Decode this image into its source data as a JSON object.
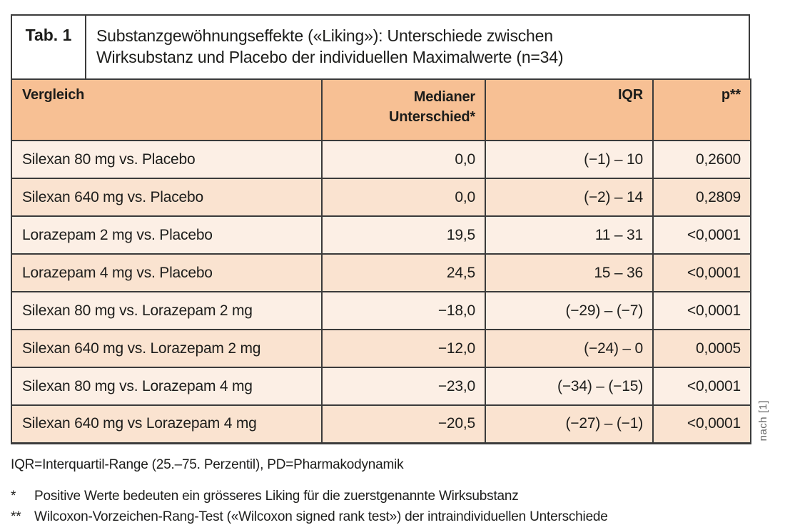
{
  "colors": {
    "header_bg": "#f7c094",
    "row_light": "#fcefe5",
    "row_dark": "#fae3d0",
    "border": "#3b3b3b",
    "text": "#1d1d1b",
    "source_text": "#666666"
  },
  "table": {
    "tag": "Tab. 1",
    "title_lines": [
      "Substanzgewöhnungseffekte («Liking»): Unterschiede zwischen",
      "Wirksubstanz und Placebo der individuellen Maximalwerte (n=34)"
    ],
    "header": {
      "col1": "Vergleich",
      "col2_lines": [
        "Medianer",
        "Unterschied*"
      ],
      "col3": "IQR",
      "col4": "p**"
    },
    "rows": [
      {
        "vergleich": "Silexan 80 mg vs. Placebo",
        "median": "0,0",
        "iqr": "(−1) – 10",
        "p": "0,2600"
      },
      {
        "vergleich": "Silexan 640 mg vs. Placebo",
        "median": "0,0",
        "iqr": "(−2) – 14",
        "p": "0,2809"
      },
      {
        "vergleich": "Lorazepam 2 mg vs. Placebo",
        "median": "19,5",
        "iqr": "11 – 31",
        "p": "<0,0001"
      },
      {
        "vergleich": "Lorazepam 4 mg vs. Placebo",
        "median": "24,5",
        "iqr": "15 – 36",
        "p": "<0,0001"
      },
      {
        "vergleich": "Silexan 80 mg vs. Lorazepam 2 mg",
        "median": "−18,0",
        "iqr": "(−29) – (−7)",
        "p": "<0,0001"
      },
      {
        "vergleich": "Silexan 640 mg vs. Lorazepam 2 mg",
        "median": "−12,0",
        "iqr": "(−24) – 0",
        "p": "0,0005"
      },
      {
        "vergleich": "Silexan 80 mg vs. Lorazepam 4 mg",
        "median": "−23,0",
        "iqr": "(−34) – (−15)",
        "p": "<0,0001"
      },
      {
        "vergleich": "Silexan 640 mg vs Lorazepam 4 mg",
        "median": "−20,5",
        "iqr": "(−27) – (−1)",
        "p": "<0,0001"
      }
    ],
    "source": "nach [1]"
  },
  "footnotes": {
    "abbrev": "IQR=Interquartil-Range (25.–75. Perzentil), PD=Pharmakodynamik",
    "note1_marker": "*",
    "note1_text": "Positive Werte bedeuten ein grösseres Liking für die zuerstgenannte Wirksubstanz",
    "note2_marker": "**",
    "note2_text": "Wilcoxon-Vorzeichen-Rang-Test («Wilcoxon signed rank test») der intraindividuellen Unterschiede"
  }
}
